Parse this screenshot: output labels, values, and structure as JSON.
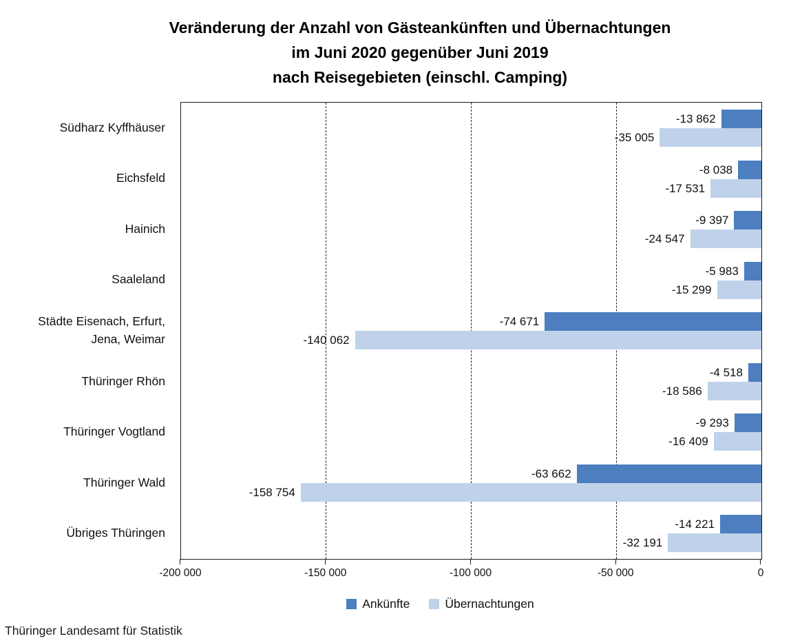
{
  "title": {
    "line1": "Veränderung der Anzahl von Gästeankünften und Übernachtungen",
    "line2": "im Juni 2020 gegenüber Juni 2019",
    "line3": "nach Reisegebieten (einschl. Camping)"
  },
  "footer": "Thüringer Landesamt für Statistik",
  "chart_data": {
    "type": "bar",
    "orientation": "horizontal",
    "title": "Veränderung der Anzahl von Gästeankünften und Übernachtungen im Juni 2020 gegenüber Juni 2019 nach Reisegebieten (einschl. Camping)",
    "categories": [
      "Südharz Kyffhäuser",
      "Eichsfeld",
      "Hainich",
      "Saaleland",
      "Städte Eisenach, Erfurt,\nJena, Weimar",
      "Thüringer Rhön",
      "Thüringer Vogtland",
      "Thüringer Wald",
      "Übriges Thüringen"
    ],
    "series": [
      {
        "name": "Ankünfte",
        "color": "#4d7ebf",
        "values": [
          -13862,
          -8038,
          -9397,
          -5983,
          -74671,
          -4518,
          -9293,
          -63662,
          -14221
        ],
        "labels": [
          "-13 862",
          "-8 038",
          "-9 397",
          "-5 983",
          "-74 671",
          "-4 518",
          "-9 293",
          "-63 662",
          "-14 221"
        ]
      },
      {
        "name": "Übernachtungen",
        "color": "#bfd2ea",
        "values": [
          -35005,
          -17531,
          -24547,
          -15299,
          -140062,
          -18586,
          -16409,
          -158754,
          -32191
        ],
        "labels": [
          "-35 005",
          "-17 531",
          "-24 547",
          "-15 299",
          "-140 062",
          "-18 586",
          "-16 409",
          "-158 754",
          "-32 191"
        ]
      }
    ],
    "xlim": [
      -200000,
      0
    ],
    "x_ticks": {
      "values": [
        -200000,
        -150000,
        -100000,
        -50000,
        0
      ],
      "labels": [
        "-200 000",
        "-150 000",
        "-100 000",
        "-50 000",
        "0"
      ]
    },
    "gridlines": {
      "values": [
        -150000,
        -100000,
        -50000
      ],
      "style": "dashed"
    },
    "legend_position": "bottom",
    "grid": true,
    "axis_color": "#1a1a1a"
  }
}
